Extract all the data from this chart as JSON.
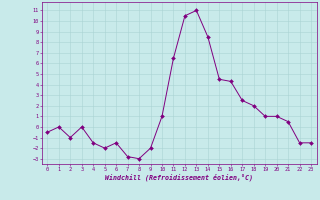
{
  "x": [
    0,
    1,
    2,
    3,
    4,
    5,
    6,
    7,
    8,
    9,
    10,
    11,
    12,
    13,
    14,
    15,
    16,
    17,
    18,
    19,
    20,
    21,
    22,
    23
  ],
  "y": [
    -0.5,
    0.0,
    -1.0,
    0.0,
    -1.5,
    -2.0,
    -1.5,
    -2.8,
    -3.0,
    -2.0,
    1.0,
    6.5,
    10.5,
    11.0,
    8.5,
    4.5,
    4.3,
    2.5,
    2.0,
    1.0,
    1.0,
    0.5,
    -1.5,
    -1.5
  ],
  "line_color": "#800080",
  "marker": "D",
  "marker_size": 2.0,
  "bg_color": "#c8eaea",
  "grid_color": "#aad4d4",
  "xlabel": "Windchill (Refroidissement éolien,°C)",
  "xlabel_color": "#800080",
  "tick_color": "#800080",
  "yticks": [
    -3,
    -2,
    -1,
    0,
    1,
    2,
    3,
    4,
    5,
    6,
    7,
    8,
    9,
    10,
    11
  ],
  "xticks": [
    0,
    1,
    2,
    3,
    4,
    5,
    6,
    7,
    8,
    9,
    10,
    11,
    12,
    13,
    14,
    15,
    16,
    17,
    18,
    19,
    20,
    21,
    22,
    23
  ],
  "ylim": [
    -3.5,
    11.8
  ],
  "xlim": [
    -0.5,
    23.5
  ]
}
